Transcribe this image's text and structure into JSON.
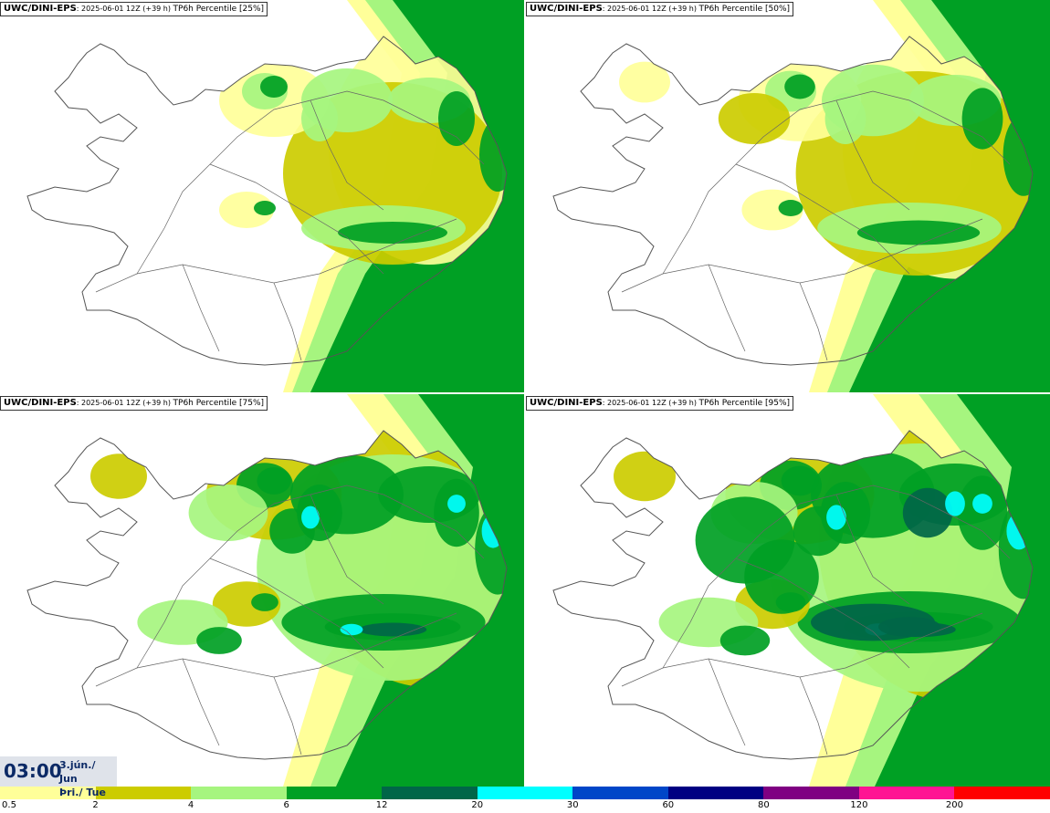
{
  "panels": [
    {
      "source": "UWC/DINI-EPS",
      "meta": "2025-06-01 12Z (+39 h)",
      "field": "TP6h Percentile [25%]",
      "level": 0
    },
    {
      "source": "UWC/DINI-EPS",
      "meta": "2025-06-01 12Z (+39 h)",
      "field": "TP6h Percentile [50%]",
      "level": 1
    },
    {
      "source": "UWC/DINI-EPS",
      "meta": "2025-06-01 12Z (+39 h)",
      "field": "TP6h Percentile [75%]",
      "level": 2
    },
    {
      "source": "UWC/DINI-EPS",
      "meta": "2025-06-01 12Z (+39 h)",
      "field": "TP6h Percentile [95%]",
      "level": 3
    }
  ],
  "valid_time": {
    "time": "03:00",
    "date": "3.jún./ Jun",
    "day": "Þri./ Tue"
  },
  "legend": {
    "colors": [
      "#ffff99",
      "#cccc00",
      "#a6f57f",
      "#00a024",
      "#006648",
      "#00ffff",
      "#0046c8",
      "#000082",
      "#7f0082",
      "#ff1493",
      "#ff0000"
    ],
    "ticks": [
      "0.5",
      "2",
      "4",
      "6",
      "12",
      "20",
      "30",
      "60",
      "80",
      "120",
      "200"
    ]
  },
  "palette": {
    "land_outline": "#555555",
    "background": "#ffffff",
    "time_text": "#0c2a66"
  }
}
